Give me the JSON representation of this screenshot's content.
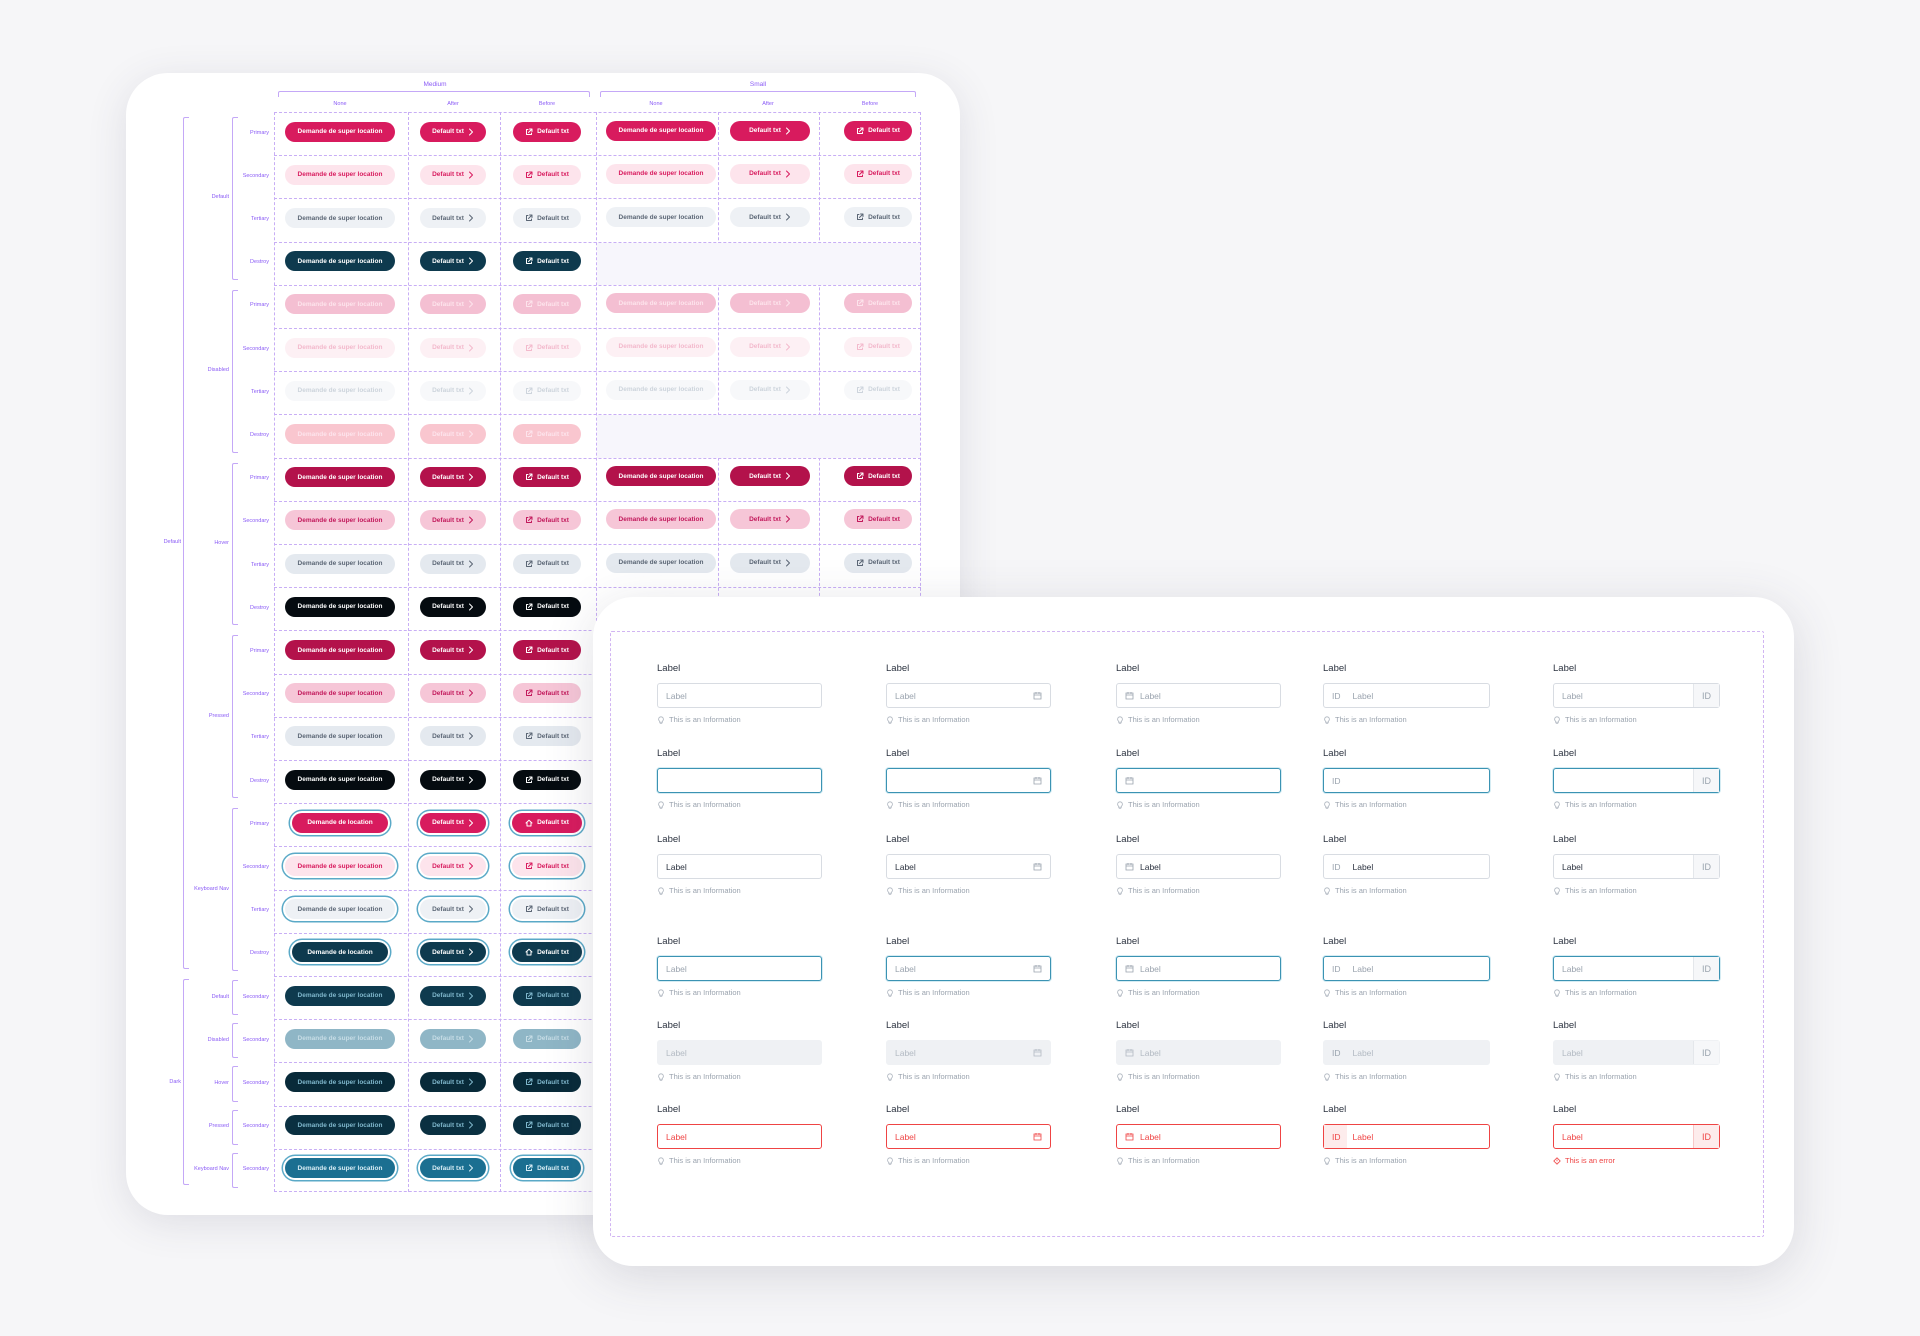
{
  "matrix": {
    "sizes": [
      "Medium",
      "Small"
    ],
    "icon_positions": [
      "None",
      "After",
      "Before"
    ],
    "variants": [
      "Primary",
      "Secondary",
      "Tertiary",
      "Destroy"
    ],
    "states_default": [
      "Default",
      "Disabled",
      "Hover",
      "Pressed",
      "Keyboard Nav"
    ],
    "theme_default": "Default",
    "theme_dark": "Dark",
    "dark_states": [
      "Default",
      "Disabled",
      "Hover",
      "Pressed",
      "Keyboard Nav"
    ],
    "dark_variant": "Secondary",
    "long_text": "Demande de super location",
    "short_text": "Default txt",
    "kbd_text": "Demande de location"
  },
  "colors": {
    "brand_pink": "#d81b5e",
    "dark_navy": "#0e3a4e",
    "focus_teal": "#3b93b3",
    "error_red": "#ef4444",
    "annotation_purple": "#8b5cf6"
  },
  "form": {
    "label": "Label",
    "placeholder": "Label",
    "value": "Label",
    "id_text": "ID",
    "help": "This is an Information",
    "error": "This is an error",
    "types": [
      "text",
      "date-suffix",
      "date-prefix",
      "id-prefix",
      "id-suffix"
    ],
    "states": [
      "default",
      "focus-typing",
      "filled",
      "focus",
      "disabled",
      "error"
    ]
  }
}
